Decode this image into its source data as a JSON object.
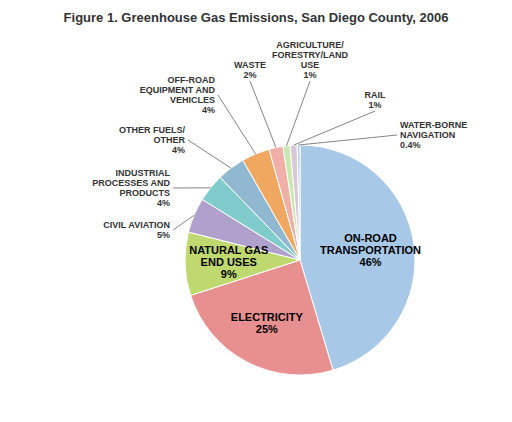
{
  "chart_data": {
    "type": "pie",
    "title": "Figure 1. Greenhouse Gas Emissions, San Diego County, 2006",
    "categories": [
      "ON-ROAD\nTRANSPORTATION",
      "ELECTRICITY",
      "NATURAL GAS\nEND USES",
      "CIVIL AVIATION",
      "INDUSTRIAL\nPROCESSES AND\nPRODUCTS",
      "OTHER FUELS/\nOTHER",
      "OFF-ROAD\nEQUIPMENT AND\nVEHICLES",
      "WASTE",
      "AGRICULTURE/\nFORESTRY/LAND\nUSE",
      "RAIL",
      "WATER-BORNE\nNAVIGATION"
    ],
    "values": [
      46,
      25,
      9,
      5,
      4,
      4,
      4,
      2,
      1,
      1,
      0.4
    ],
    "value_labels": [
      "46%",
      "25%",
      "9%",
      "5%",
      "4%",
      "4%",
      "4%",
      "2%",
      "1%",
      "1%",
      "0.4%"
    ],
    "colors": [
      "#A8C8E8",
      "#E89090",
      "#C0D870",
      "#B0A0CC",
      "#80CCCC",
      "#90B8D0",
      "#F0A860",
      "#F0B0A8",
      "#C8E8B0",
      "#D8C8D8",
      "#B8D0E8"
    ],
    "data_labels": true
  }
}
